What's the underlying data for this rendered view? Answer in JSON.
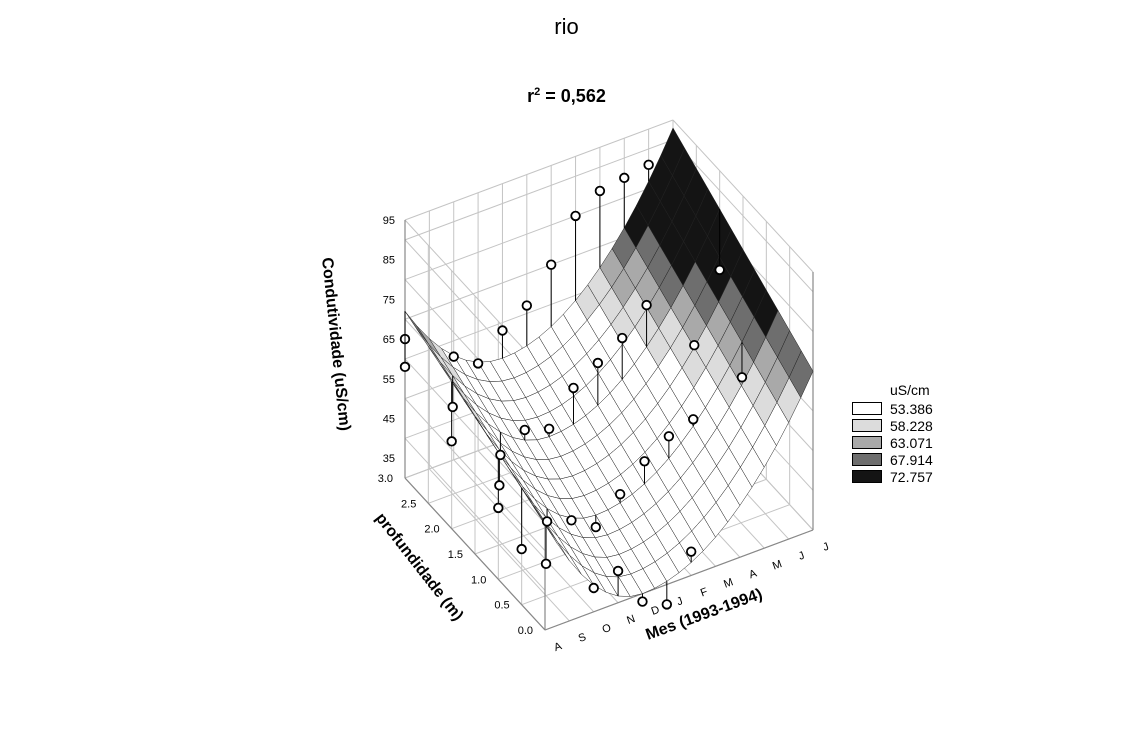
{
  "chart_data": {
    "type": "surface3d",
    "title": "rio",
    "subtitle_prefix": "r",
    "subtitle_sup": "2",
    "subtitle_suffix": " = 0,562",
    "xlabel": "Mes (1993-1994)",
    "ylabel": "profundidade (m)",
    "zlabel": "Condutividade (uS/cm)",
    "x_ticks": [
      "A",
      "S",
      "O",
      "N",
      "D",
      "J",
      "F",
      "M",
      "A",
      "M",
      "J",
      "J"
    ],
    "y_ticks": [
      "0.0",
      "0.5",
      "1.0",
      "1.5",
      "2.0",
      "2.5",
      "3.0"
    ],
    "z_ticks": [
      "95",
      "85",
      "75",
      "65",
      "55",
      "45",
      "35"
    ],
    "y_range": [
      0,
      3
    ],
    "z_range": [
      30,
      95
    ],
    "legend": {
      "title": "uS/cm",
      "entries": [
        {
          "label": "53.386",
          "color": "#ffffff"
        },
        {
          "label": "58.228",
          "color": "#dcdcdc"
        },
        {
          "label": "63.071",
          "color": "#a9a9a9"
        },
        {
          "label": "67.914",
          "color": "#6e6e6e"
        },
        {
          "label": "72.757",
          "color": "#141414"
        }
      ]
    },
    "surface_samples": [
      {
        "month": 0,
        "depth": 0,
        "value": 57
      },
      {
        "month": 4,
        "depth": 0,
        "value": 30
      },
      {
        "month": 11,
        "depth": 0,
        "value": 70
      },
      {
        "month": 0,
        "depth": 3,
        "value": 72
      },
      {
        "month": 4,
        "depth": 3,
        "value": 51
      },
      {
        "month": 11,
        "depth": 3,
        "value": 93
      }
    ],
    "points": [
      {
        "month": 0,
        "depth": 3.0,
        "value": 65
      },
      {
        "month": 0,
        "depth": 3.0,
        "value": 58
      },
      {
        "month": 0,
        "depth": 2.0,
        "value": 52
      },
      {
        "month": 0,
        "depth": 1.0,
        "value": 48
      },
      {
        "month": 0,
        "depth": 0.5,
        "value": 44
      },
      {
        "month": 1,
        "depth": 2.5,
        "value": 52
      },
      {
        "month": 1,
        "depth": 1.5,
        "value": 45
      },
      {
        "month": 1,
        "depth": 0.5,
        "value": 38
      },
      {
        "month": 2,
        "depth": 3.0,
        "value": 56
      },
      {
        "month": 2,
        "depth": 2.0,
        "value": 44
      },
      {
        "month": 2,
        "depth": 1.0,
        "value": 40
      },
      {
        "month": 2,
        "depth": 0.0,
        "value": 36
      },
      {
        "month": 3,
        "depth": 3.0,
        "value": 52
      },
      {
        "month": 3,
        "depth": 2.0,
        "value": 48
      },
      {
        "month": 3,
        "depth": 1.0,
        "value": 38
      },
      {
        "month": 3,
        "depth": 0.0,
        "value": 38
      },
      {
        "month": 4,
        "depth": 3.0,
        "value": 58
      },
      {
        "month": 4,
        "depth": 2.0,
        "value": 46
      },
      {
        "month": 4,
        "depth": 1.0,
        "value": 34
      },
      {
        "month": 4,
        "depth": 0.0,
        "value": 28
      },
      {
        "month": 5,
        "depth": 3.0,
        "value": 62
      },
      {
        "month": 5,
        "depth": 2.0,
        "value": 54
      },
      {
        "month": 5,
        "depth": 1.0,
        "value": 40
      },
      {
        "month": 5,
        "depth": 0.0,
        "value": 25
      },
      {
        "month": 6,
        "depth": 3.0,
        "value": 70
      },
      {
        "month": 6,
        "depth": 2.0,
        "value": 58
      },
      {
        "month": 6,
        "depth": 1.0,
        "value": 46
      },
      {
        "month": 6,
        "depth": 0.0,
        "value": 36
      },
      {
        "month": 7,
        "depth": 3.0,
        "value": 80
      },
      {
        "month": 7,
        "depth": 2.0,
        "value": 62
      },
      {
        "month": 7,
        "depth": 1.0,
        "value": 50
      },
      {
        "month": 8,
        "depth": 3.0,
        "value": 84
      },
      {
        "month": 8,
        "depth": 2.0,
        "value": 68
      },
      {
        "month": 8,
        "depth": 1.0,
        "value": 52
      },
      {
        "month": 9,
        "depth": 3.0,
        "value": 85
      },
      {
        "month": 9,
        "depth": 1.5,
        "value": 62
      },
      {
        "month": 10,
        "depth": 3.0,
        "value": 86
      },
      {
        "month": 10,
        "depth": 1.0,
        "value": 58
      },
      {
        "month": 11,
        "depth": 2.0,
        "value": 70
      }
    ]
  }
}
